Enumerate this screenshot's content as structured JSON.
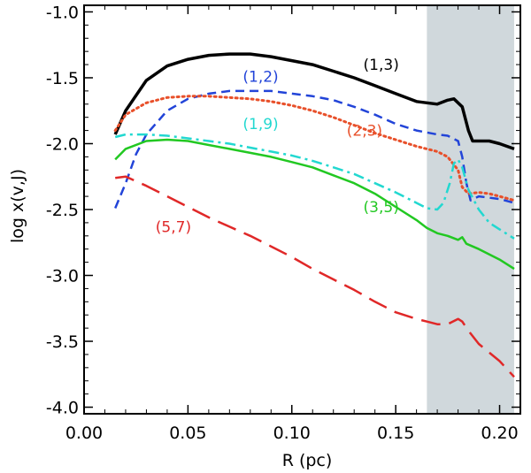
{
  "chart_data": {
    "type": "line",
    "title": "",
    "xlabel": "R (pc)",
    "ylabel": "log x(v,J)",
    "xlim": [
      0.0,
      0.21
    ],
    "ylim": [
      -4.05,
      -0.95
    ],
    "xticks": [
      "0.00",
      "0.05",
      "0.10",
      "0.15",
      "0.20"
    ],
    "yticks": [
      "-1.0",
      "-1.5",
      "-2.0",
      "-2.5",
      "-3.0",
      "-3.5",
      "-4.0"
    ],
    "shaded_region": {
      "x": [
        0.165,
        0.207
      ],
      "color": "#d0d8dc"
    },
    "series": [
      {
        "name": "(1,3)",
        "color": "#000000",
        "style": "solid",
        "width": 3.5,
        "points": [
          [
            0.015,
            -1.93
          ],
          [
            0.02,
            -1.75
          ],
          [
            0.03,
            -1.52
          ],
          [
            0.04,
            -1.41
          ],
          [
            0.05,
            -1.36
          ],
          [
            0.06,
            -1.33
          ],
          [
            0.07,
            -1.32
          ],
          [
            0.08,
            -1.32
          ],
          [
            0.09,
            -1.34
          ],
          [
            0.1,
            -1.37
          ],
          [
            0.11,
            -1.4
          ],
          [
            0.12,
            -1.45
          ],
          [
            0.13,
            -1.5
          ],
          [
            0.14,
            -1.56
          ],
          [
            0.15,
            -1.62
          ],
          [
            0.16,
            -1.68
          ],
          [
            0.17,
            -1.7
          ],
          [
            0.175,
            -1.67
          ],
          [
            0.178,
            -1.66
          ],
          [
            0.182,
            -1.72
          ],
          [
            0.185,
            -1.9
          ],
          [
            0.187,
            -1.98
          ],
          [
            0.19,
            -1.98
          ],
          [
            0.195,
            -1.98
          ],
          [
            0.2,
            -2.0
          ],
          [
            0.207,
            -2.04
          ]
        ],
        "label_pos": [
          0.143,
          -1.44
        ]
      },
      {
        "name": "(1,2)",
        "color": "#2244d8",
        "style": "dash",
        "width": 2.5,
        "points": [
          [
            0.015,
            -2.49
          ],
          [
            0.02,
            -2.3
          ],
          [
            0.025,
            -2.08
          ],
          [
            0.03,
            -1.93
          ],
          [
            0.04,
            -1.75
          ],
          [
            0.05,
            -1.66
          ],
          [
            0.06,
            -1.62
          ],
          [
            0.07,
            -1.6
          ],
          [
            0.08,
            -1.6
          ],
          [
            0.09,
            -1.6
          ],
          [
            0.1,
            -1.62
          ],
          [
            0.11,
            -1.64
          ],
          [
            0.12,
            -1.67
          ],
          [
            0.13,
            -1.72
          ],
          [
            0.14,
            -1.78
          ],
          [
            0.15,
            -1.85
          ],
          [
            0.16,
            -1.9
          ],
          [
            0.17,
            -1.93
          ],
          [
            0.175,
            -1.94
          ],
          [
            0.18,
            -1.98
          ],
          [
            0.182,
            -2.1
          ],
          [
            0.184,
            -2.3
          ],
          [
            0.186,
            -2.43
          ],
          [
            0.19,
            -2.4
          ],
          [
            0.2,
            -2.42
          ],
          [
            0.207,
            -2.45
          ]
        ],
        "label_pos": [
          0.085,
          -1.53
        ]
      },
      {
        "name": "(2,3)",
        "color": "#e8502a",
        "style": "dot",
        "width": 3,
        "points": [
          [
            0.015,
            -1.9
          ],
          [
            0.02,
            -1.78
          ],
          [
            0.03,
            -1.69
          ],
          [
            0.04,
            -1.65
          ],
          [
            0.05,
            -1.64
          ],
          [
            0.06,
            -1.64
          ],
          [
            0.07,
            -1.65
          ],
          [
            0.08,
            -1.66
          ],
          [
            0.09,
            -1.68
          ],
          [
            0.1,
            -1.71
          ],
          [
            0.11,
            -1.75
          ],
          [
            0.12,
            -1.8
          ],
          [
            0.13,
            -1.86
          ],
          [
            0.14,
            -1.92
          ],
          [
            0.15,
            -1.97
          ],
          [
            0.16,
            -2.02
          ],
          [
            0.17,
            -2.06
          ],
          [
            0.175,
            -2.1
          ],
          [
            0.18,
            -2.2
          ],
          [
            0.182,
            -2.33
          ],
          [
            0.185,
            -2.38
          ],
          [
            0.19,
            -2.37
          ],
          [
            0.195,
            -2.38
          ],
          [
            0.2,
            -2.4
          ],
          [
            0.207,
            -2.43
          ]
        ],
        "label_pos": [
          0.135,
          -1.94
        ]
      },
      {
        "name": "(1,9)",
        "color": "#22d8d0",
        "style": "dashdot",
        "width": 2.5,
        "points": [
          [
            0.015,
            -1.95
          ],
          [
            0.02,
            -1.93
          ],
          [
            0.03,
            -1.93
          ],
          [
            0.04,
            -1.94
          ],
          [
            0.05,
            -1.96
          ],
          [
            0.06,
            -1.98
          ],
          [
            0.07,
            -2.0
          ],
          [
            0.08,
            -2.03
          ],
          [
            0.09,
            -2.06
          ],
          [
            0.1,
            -2.09
          ],
          [
            0.11,
            -2.13
          ],
          [
            0.12,
            -2.18
          ],
          [
            0.13,
            -2.23
          ],
          [
            0.14,
            -2.3
          ],
          [
            0.15,
            -2.37
          ],
          [
            0.16,
            -2.45
          ],
          [
            0.165,
            -2.49
          ],
          [
            0.17,
            -2.5
          ],
          [
            0.173,
            -2.45
          ],
          [
            0.176,
            -2.3
          ],
          [
            0.178,
            -2.15
          ],
          [
            0.18,
            -2.12
          ],
          [
            0.182,
            -2.18
          ],
          [
            0.185,
            -2.35
          ],
          [
            0.19,
            -2.5
          ],
          [
            0.195,
            -2.6
          ],
          [
            0.2,
            -2.65
          ],
          [
            0.207,
            -2.72
          ]
        ],
        "label_pos": [
          0.085,
          -1.89
        ]
      },
      {
        "name": "(3,5)",
        "color": "#22c822",
        "style": "solid",
        "width": 2.5,
        "points": [
          [
            0.015,
            -2.12
          ],
          [
            0.02,
            -2.04
          ],
          [
            0.03,
            -1.98
          ],
          [
            0.04,
            -1.97
          ],
          [
            0.05,
            -1.98
          ],
          [
            0.06,
            -2.01
          ],
          [
            0.07,
            -2.04
          ],
          [
            0.08,
            -2.07
          ],
          [
            0.09,
            -2.1
          ],
          [
            0.1,
            -2.14
          ],
          [
            0.11,
            -2.18
          ],
          [
            0.12,
            -2.24
          ],
          [
            0.13,
            -2.3
          ],
          [
            0.14,
            -2.38
          ],
          [
            0.15,
            -2.48
          ],
          [
            0.16,
            -2.58
          ],
          [
            0.165,
            -2.64
          ],
          [
            0.17,
            -2.68
          ],
          [
            0.175,
            -2.7
          ],
          [
            0.18,
            -2.73
          ],
          [
            0.182,
            -2.71
          ],
          [
            0.184,
            -2.76
          ],
          [
            0.19,
            -2.8
          ],
          [
            0.2,
            -2.88
          ],
          [
            0.207,
            -2.95
          ]
        ],
        "label_pos": [
          0.143,
          -2.52
        ]
      },
      {
        "name": "(5,7)",
        "color": "#e02828",
        "style": "longdash",
        "width": 2.5,
        "points": [
          [
            0.015,
            -2.26
          ],
          [
            0.02,
            -2.25
          ],
          [
            0.03,
            -2.32
          ],
          [
            0.04,
            -2.4
          ],
          [
            0.05,
            -2.48
          ],
          [
            0.06,
            -2.56
          ],
          [
            0.07,
            -2.63
          ],
          [
            0.08,
            -2.7
          ],
          [
            0.09,
            -2.78
          ],
          [
            0.1,
            -2.86
          ],
          [
            0.11,
            -2.95
          ],
          [
            0.12,
            -3.03
          ],
          [
            0.13,
            -3.11
          ],
          [
            0.14,
            -3.2
          ],
          [
            0.15,
            -3.28
          ],
          [
            0.16,
            -3.33
          ],
          [
            0.165,
            -3.35
          ],
          [
            0.17,
            -3.37
          ],
          [
            0.175,
            -3.37
          ],
          [
            0.18,
            -3.33
          ],
          [
            0.182,
            -3.35
          ],
          [
            0.185,
            -3.42
          ],
          [
            0.19,
            -3.52
          ],
          [
            0.2,
            -3.65
          ],
          [
            0.207,
            -3.77
          ]
        ],
        "label_pos": [
          0.043,
          -2.67
        ]
      }
    ]
  }
}
